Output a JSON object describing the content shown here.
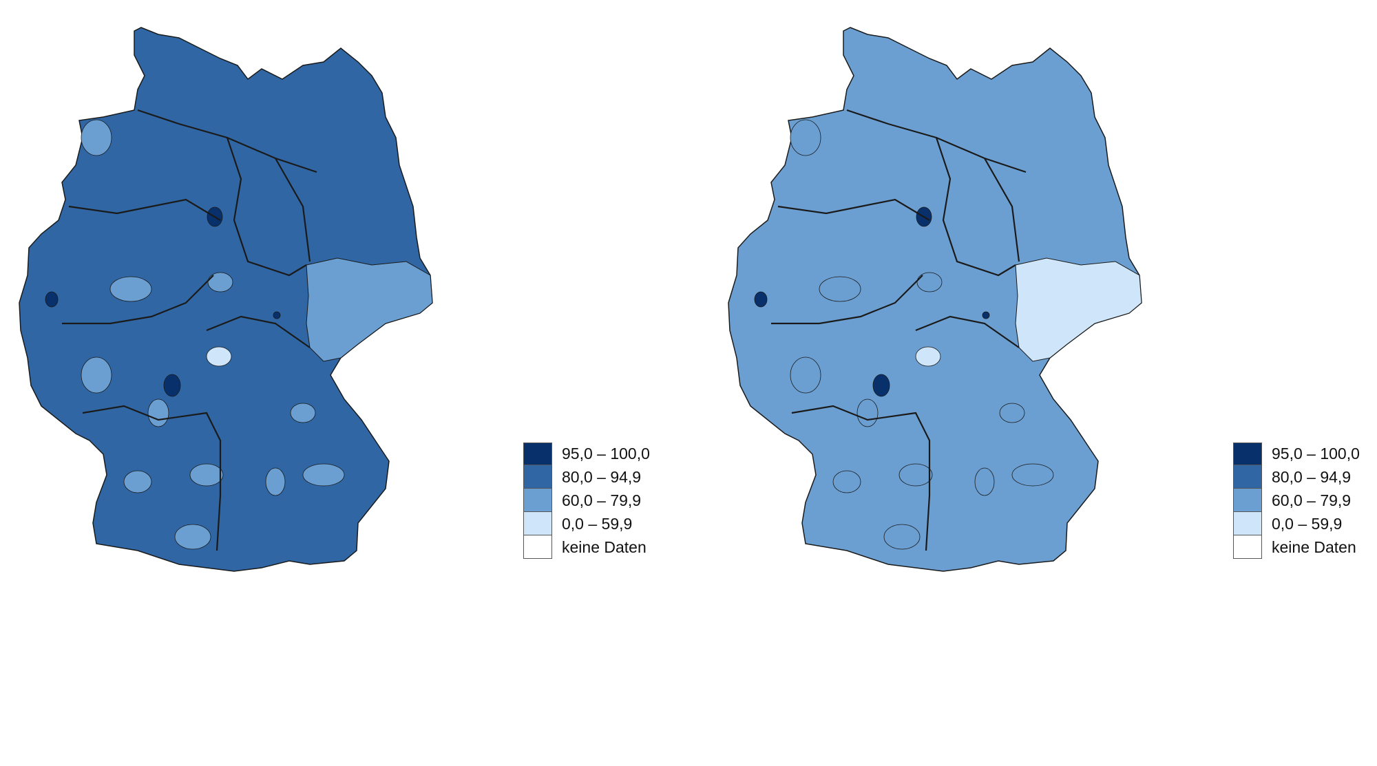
{
  "colors": {
    "class_95_100": "#08306b",
    "class_80_949": "#2f66a3",
    "class_60_799": "#6b9fd1",
    "class_0_599": "#cfe6fa",
    "no_data": "#ffffff",
    "border": "#1a1a1a"
  },
  "legend": {
    "items": [
      {
        "label": "95,0 – 100,0",
        "color": "#08306b"
      },
      {
        "label": "80,0 – 94,9",
        "color": "#2f66a3"
      },
      {
        "label": "60,0 – 79,9",
        "color": "#6b9fd1"
      },
      {
        "label": "0,0 – 59,9",
        "color": "#cfe6fa"
      },
      {
        "label": "keine Daten",
        "color": "#ffffff"
      }
    ]
  },
  "maps": [
    {
      "base_class": "class_80_949",
      "east_saxony_class": "class_60_799"
    },
    {
      "base_class": "class_60_799",
      "east_saxony_class": "class_0_599"
    }
  ]
}
